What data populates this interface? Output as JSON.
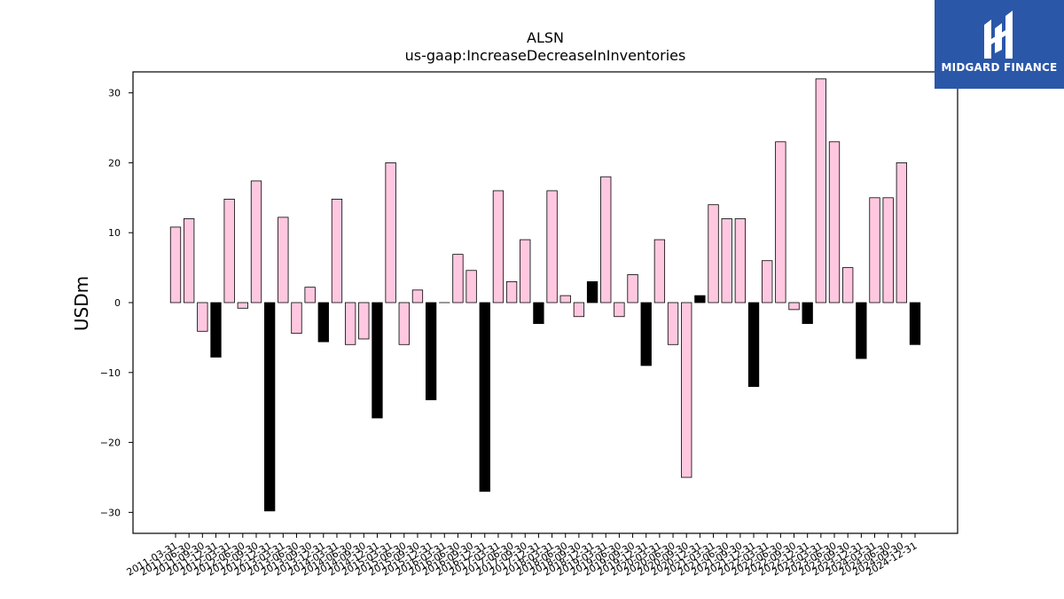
{
  "chart_data": {
    "type": "bar",
    "title": "ALSN",
    "subtitle": "us-gaap:IncreaseDecreaseInInventories",
    "xlabel": "",
    "ylabel": "USDm",
    "ylim": [
      -33,
      33
    ],
    "yticks": [
      -30,
      -20,
      -10,
      0,
      10,
      20,
      30
    ],
    "ytick_labels": [
      "−30",
      "−20",
      "−10",
      "0",
      "10",
      "20",
      "30"
    ],
    "grid": false,
    "colors": {
      "positive": "#ffc8e0",
      "negative": "#000000",
      "edge": "#000000"
    },
    "categories": [
      "2011-03-31",
      "2011-06-30",
      "2011-09-30",
      "2011-12-31",
      "2012-03-31",
      "2012-06-30",
      "2012-09-30",
      "2012-12-31",
      "2013-03-31",
      "2013-06-30",
      "2013-09-30",
      "2013-12-31",
      "2014-03-31",
      "2014-06-30",
      "2014-09-30",
      "2014-12-31",
      "2015-03-31",
      "2015-06-30",
      "2015-09-30",
      "2015-12-31",
      "2016-03-31",
      "2016-06-30",
      "2016-09-30",
      "2016-12-31",
      "2017-03-31",
      "2017-06-30",
      "2017-09-30",
      "2017-12-31",
      "2018-03-31",
      "2018-06-30",
      "2018-09-30",
      "2018-12-31",
      "2019-03-31",
      "2019-06-30",
      "2019-09-30",
      "2019-12-31",
      "2020-03-31",
      "2020-06-30",
      "2020-09-30",
      "2020-12-31",
      "2021-03-31",
      "2021-06-30",
      "2021-09-30",
      "2021-12-31",
      "2022-03-31",
      "2022-06-30",
      "2022-09-30",
      "2022-12-31",
      "2023-03-31",
      "2023-06-30",
      "2023-09-30",
      "2023-12-31",
      "2024-03-31",
      "2024-06-30",
      "2024-09-30",
      "2024-12-31"
    ],
    "values": [
      10.8,
      12,
      -4.1,
      -7.8,
      14.8,
      -0.8,
      17.4,
      -29.8,
      12.2,
      -4.4,
      2.2,
      -5.6,
      14.8,
      -6,
      -5.2,
      -16.5,
      20,
      -6,
      1.8,
      -13.9,
      0,
      6.9,
      4.6,
      -27,
      16,
      3,
      9,
      -3,
      16,
      1,
      -2,
      3,
      18,
      -2,
      4,
      -9,
      9,
      -6,
      -25,
      1,
      14,
      12,
      12,
      -12,
      6,
      23,
      -1,
      -3,
      32,
      23,
      5,
      -8,
      15,
      15,
      20,
      -6
    ],
    "bar_colors": [
      "positive",
      "positive",
      "positive",
      "negative",
      "positive",
      "positive",
      "positive",
      "negative",
      "positive",
      "positive",
      "positive",
      "negative",
      "positive",
      "positive",
      "positive",
      "negative",
      "positive",
      "positive",
      "positive",
      "negative",
      "positive",
      "positive",
      "positive",
      "negative",
      "positive",
      "positive",
      "positive",
      "negative",
      "positive",
      "positive",
      "positive",
      "negative",
      "positive",
      "positive",
      "positive",
      "negative",
      "positive",
      "positive",
      "positive",
      "negative",
      "positive",
      "positive",
      "positive",
      "negative",
      "positive",
      "positive",
      "positive",
      "negative",
      "positive",
      "positive",
      "positive",
      "negative",
      "positive",
      "positive",
      "positive",
      "negative"
    ]
  },
  "logo": {
    "text": "MIDGARD FINANCE",
    "color": "#2b57a8"
  }
}
